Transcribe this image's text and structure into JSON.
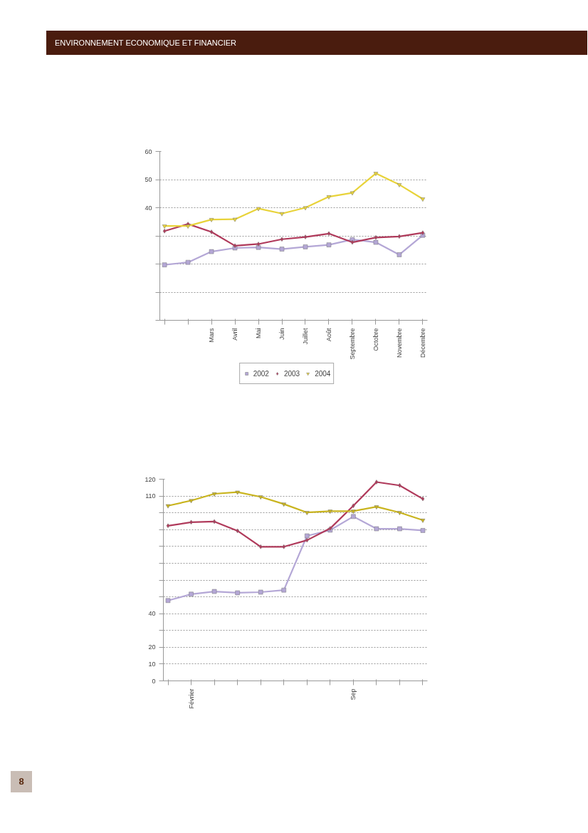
{
  "chart_data": [
    {
      "type": "line",
      "annotations": [
        "ENVIRONNEMENT ECONOMIQUE ET FINANCIER"
      ],
      "categories": [
        null,
        null,
        "Mars",
        "Avril",
        "Mai",
        "Juin",
        "Juillet",
        "Août",
        "Septembre",
        "Octobre",
        "Novembre",
        "Décembre"
      ],
      "series": [
        {
          "name": "2002",
          "color": "#b4a7d6",
          "marker": "square",
          "values": [
            19.7,
            20.6,
            24.4,
            25.7,
            25.9,
            25.3,
            26.1,
            26.8,
            28.7,
            27.7,
            23.3,
            30.2
          ]
        },
        {
          "name": "2003",
          "color": "#b03a5b",
          "marker": "diamond",
          "values": [
            31.7,
            34.2,
            31.4,
            26.5,
            27.1,
            28.8,
            29.6,
            30.8,
            27.7,
            29.4,
            29.8,
            31.1
          ]
        },
        {
          "name": "2004",
          "color": "#e8d33a",
          "marker": "triangle",
          "values": [
            33.5,
            33.5,
            35.8,
            35.9,
            39.7,
            37.9,
            40.0,
            43.9,
            45.3,
            52.2,
            48.2,
            43.1
          ]
        }
      ],
      "ylim": [
        0,
        60
      ],
      "yticks": [
        {
          "value": 0,
          "label": null
        },
        {
          "value": 10,
          "label": null
        },
        {
          "value": 20,
          "label": null
        },
        {
          "value": 30,
          "label": null
        },
        40,
        50,
        60
      ],
      "grid": "y",
      "legend": "bottom",
      "line_style": "solid"
    },
    {
      "type": "line",
      "annotations": [
        "8"
      ],
      "categories": [
        null,
        "Février",
        null,
        null,
        null,
        null,
        null,
        null,
        "Sep",
        null,
        null,
        null
      ],
      "series": [
        {
          "color": "#b4a7d6",
          "marker": "square",
          "values": [
            47.8,
            51.6,
            53.2,
            52.4,
            52.8,
            54.0,
            86.3,
            89.7,
            97.8,
            90.5,
            90.5,
            89.5
          ]
        },
        {
          "color": "#b03a5b",
          "marker": "diamond",
          "values": [
            92.3,
            94.4,
            94.8,
            89.3,
            79.8,
            79.8,
            83.7,
            90.7,
            104.2,
            118.3,
            116.3,
            108.3
          ]
        },
        {
          "color": "#c9b41e",
          "marker": "triangle",
          "values": [
            104.2,
            107.3,
            111.3,
            112.3,
            109.5,
            105.2,
            100.2,
            101.0,
            101.0,
            103.6,
            100.2,
            95.6
          ]
        }
      ],
      "ylim": [
        0,
        120
      ],
      "yticks": [
        0,
        10,
        20,
        {
          "value": 30,
          "label": null
        },
        40,
        {
          "value": 50,
          "label": null
        },
        {
          "value": 60,
          "label": null
        },
        {
          "value": 70,
          "label": null
        },
        {
          "value": 80,
          "label": null
        },
        {
          "value": 90,
          "label": null
        },
        {
          "value": 100,
          "label": null
        },
        110,
        120
      ],
      "grid": "y",
      "line_style": "solid"
    }
  ]
}
